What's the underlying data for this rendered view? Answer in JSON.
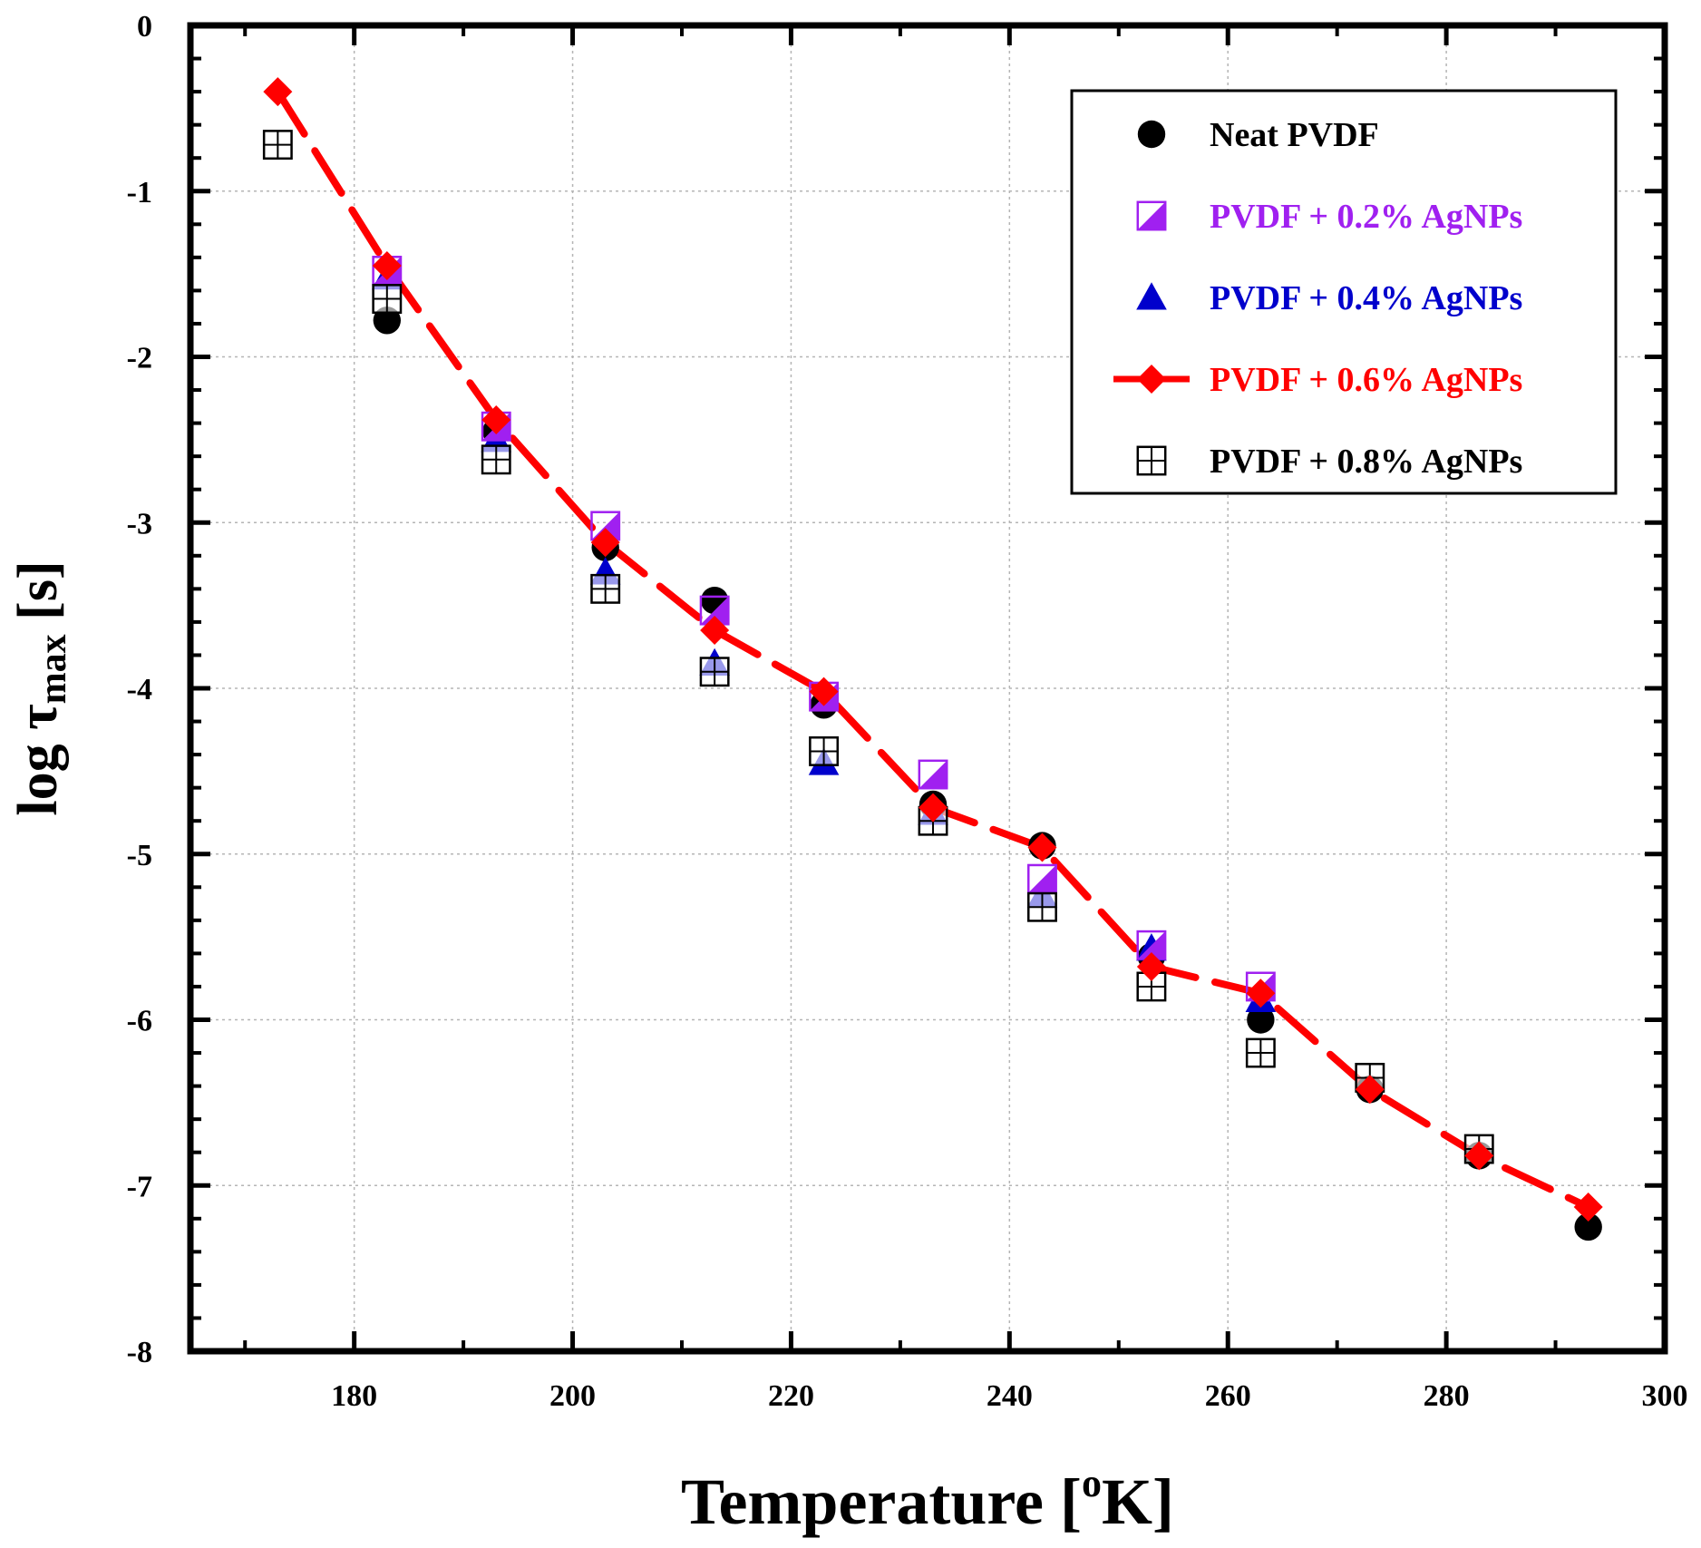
{
  "chart_data": {
    "type": "scatter",
    "title": "",
    "xlabel": "Temperature [oK]",
    "xlabel_parts": {
      "base": "Temperature [",
      "sup": "o",
      "tail": "K]"
    },
    "ylabel": "log τmax [s]",
    "ylabel_parts": {
      "base": "log τ",
      "sub": "max",
      "tail": " [s]"
    },
    "xlim": [
      165,
      300
    ],
    "ylim": [
      -8,
      0
    ],
    "xticks": [
      180,
      200,
      220,
      240,
      260,
      280,
      300
    ],
    "yticks": [
      0,
      -1,
      -2,
      -3,
      -4,
      -5,
      -6,
      -7,
      -8
    ],
    "grid": true,
    "legend_position": "top-right",
    "series": [
      {
        "name": "Neat PVDF",
        "marker": "circle",
        "color": "#000000",
        "line": false,
        "x": [
          183,
          193,
          203,
          213,
          223,
          233,
          243,
          253,
          263,
          273,
          283,
          293
        ],
        "y": [
          -1.78,
          -2.45,
          -3.15,
          -3.47,
          -4.1,
          -4.7,
          -4.95,
          -5.62,
          -6.0,
          -6.42,
          -6.82,
          -7.25
        ]
      },
      {
        "name": "PVDF + 0.2% AgNPs",
        "marker": "half-square",
        "color": "#a020f0",
        "line": false,
        "x": [
          183,
          193,
          203,
          213,
          223,
          233,
          243,
          253,
          263
        ],
        "y": [
          -1.48,
          -2.42,
          -3.02,
          -3.53,
          -4.05,
          -4.52,
          -5.15,
          -5.55,
          -5.8
        ]
      },
      {
        "name": "PVDF + 0.4% AgNPs",
        "marker": "triangle",
        "color": "#0000cc",
        "line": false,
        "x": [
          183,
          193,
          203,
          213,
          223,
          233,
          243,
          253,
          263
        ],
        "y": [
          -1.52,
          -2.5,
          -3.3,
          -3.85,
          -4.45,
          -4.75,
          -5.25,
          -5.57,
          -5.88
        ]
      },
      {
        "name": "PVDF + 0.6% AgNPs",
        "marker": "diamond",
        "color": "#ff0000",
        "line": true,
        "x": [
          173,
          183,
          193,
          203,
          213,
          223,
          233,
          243,
          253,
          263,
          273,
          283,
          293
        ],
        "y": [
          -0.4,
          -1.45,
          -2.38,
          -3.12,
          -3.65,
          -4.02,
          -4.72,
          -4.96,
          -5.68,
          -5.84,
          -6.42,
          -6.82,
          -7.13
        ]
      },
      {
        "name": "PVDF + 0.8% AgNPs",
        "marker": "grid-square",
        "color": "#000000",
        "line": false,
        "x": [
          173,
          183,
          193,
          203,
          213,
          223,
          233,
          243,
          253,
          263,
          273,
          283
        ],
        "y": [
          -0.72,
          -1.65,
          -2.62,
          -3.4,
          -3.9,
          -4.38,
          -4.8,
          -5.32,
          -5.8,
          -6.2,
          -6.35,
          -6.78
        ]
      }
    ]
  }
}
